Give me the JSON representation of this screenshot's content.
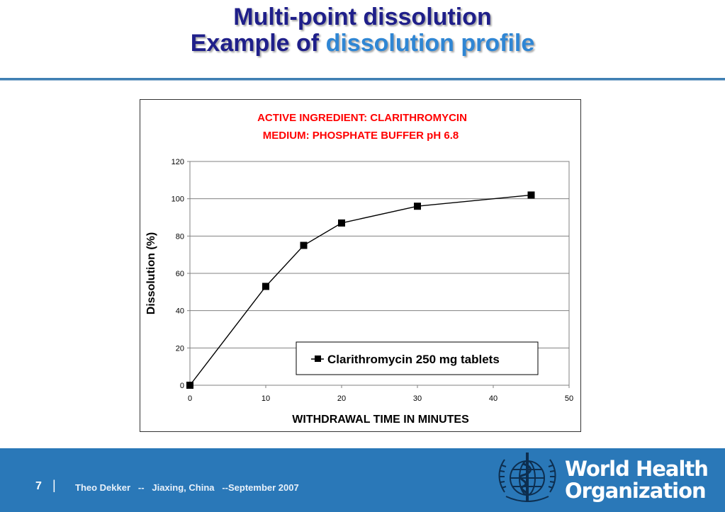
{
  "slide": {
    "title_line1": "Multi-point dissolution",
    "title_line2_prefix": "Example of ",
    "title_line2_highlight": "dissolution profile"
  },
  "colors": {
    "title": "#1f1f8a",
    "title_highlight": "#2f86d4",
    "chart_title": "#ff0000",
    "footer_bg": "#2a78b8",
    "series": "#000000"
  },
  "chart_data": {
    "type": "line",
    "title": "ACTIVE INGREDIENT:  CLARITHROMYCIN",
    "subtitle": "MEDIUM:  PHOSPHATE BUFFER pH 6.8",
    "xlabel": "WITHDRAWAL TIME IN MINUTES",
    "ylabel": "Dissolution (%)",
    "xlim": [
      0,
      50
    ],
    "ylim": [
      0,
      120
    ],
    "x_ticks": [
      0,
      10,
      20,
      30,
      40,
      50
    ],
    "y_ticks": [
      0,
      20,
      40,
      60,
      80,
      100,
      120
    ],
    "grid": "horizontal",
    "legend_position": "bottom-right",
    "series": [
      {
        "name": "Clarithromycin 250 mg tablets",
        "marker": "square",
        "x": [
          0,
          10,
          15,
          20,
          30,
          45
        ],
        "y": [
          0,
          53,
          75,
          87,
          96,
          102
        ]
      }
    ]
  },
  "footer": {
    "page_number": "7",
    "separator": "|",
    "text": "Theo Dekker   --   Jiaxing, China   --September 2007",
    "org_line1": "World Health",
    "org_line2": "Organization"
  },
  "logo": {
    "icon": "who-emblem-icon"
  }
}
